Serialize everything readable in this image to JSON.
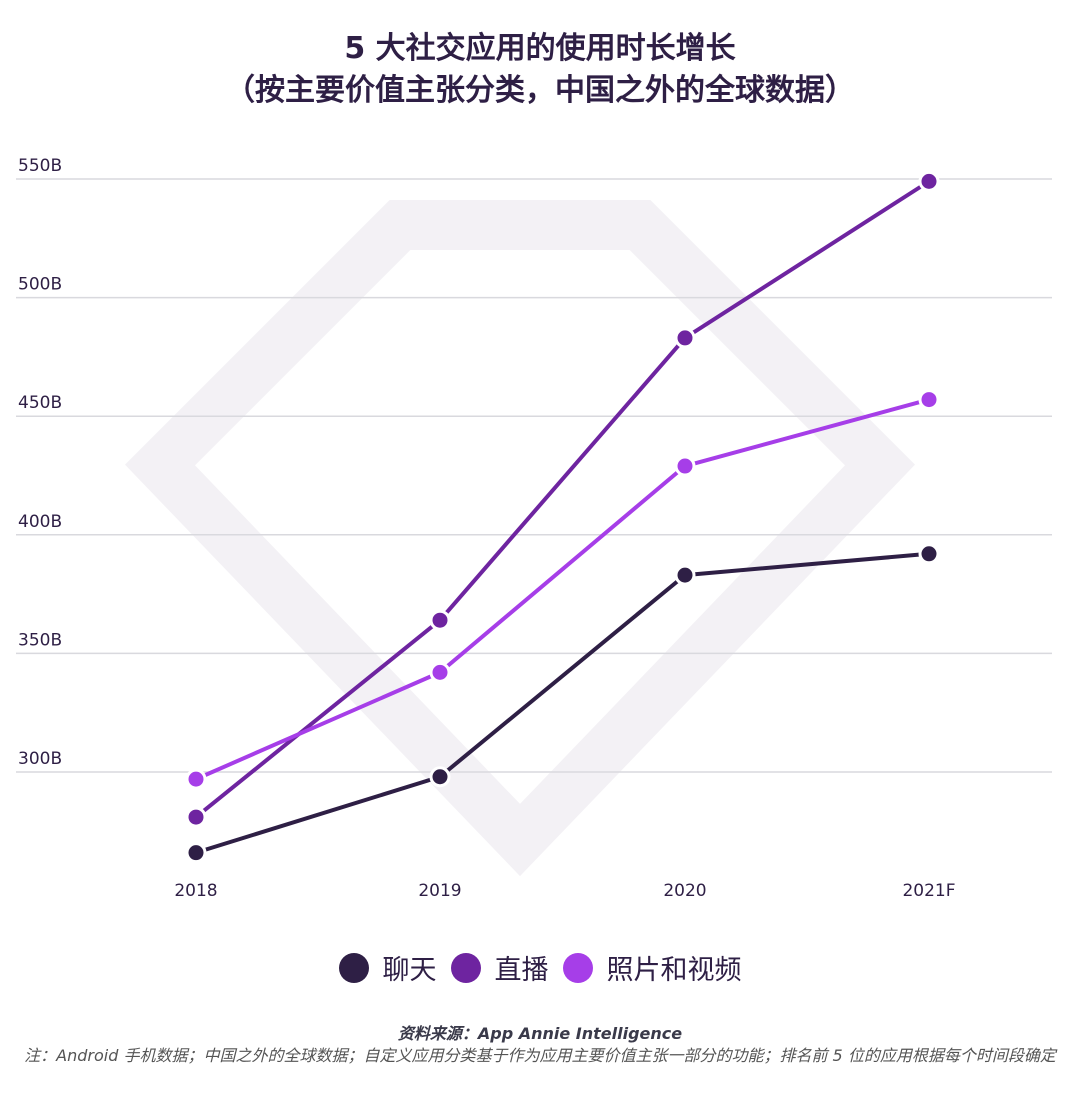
{
  "title_line1": "5 大社交应用的使用时长增长",
  "title_line2": "（按主要价值主张分类，中国之外的全球数据）",
  "chart_data": {
    "type": "line",
    "title": "5 大社交应用的使用时长增长（按主要价值主张分类，中国之外的全球数据）",
    "categories": [
      "2018",
      "2019",
      "2020",
      "2021F"
    ],
    "y_ticks": [
      "300B",
      "350B",
      "400B",
      "450B",
      "500B",
      "550B"
    ],
    "ylim": [
      250,
      550
    ],
    "grid": true,
    "legend_position": "bottom",
    "series": [
      {
        "name": "聊天",
        "color": "#2e1f45",
        "values": [
          266,
          298,
          383,
          392
        ]
      },
      {
        "name": "直播",
        "color": "#6e24a0",
        "values": [
          281,
          364,
          483,
          549
        ]
      },
      {
        "name": "照片和视频",
        "color": "#a63ee8",
        "values": [
          297,
          342,
          429,
          457
        ]
      }
    ]
  },
  "source": "资料来源：App Annie Intelligence",
  "note": "注：Android 手机数据；中国之外的全球数据；自定义应用分类基于作为应用主要价值主张一部分的功能；排名前 5 位的应用根据每个时间段确定"
}
